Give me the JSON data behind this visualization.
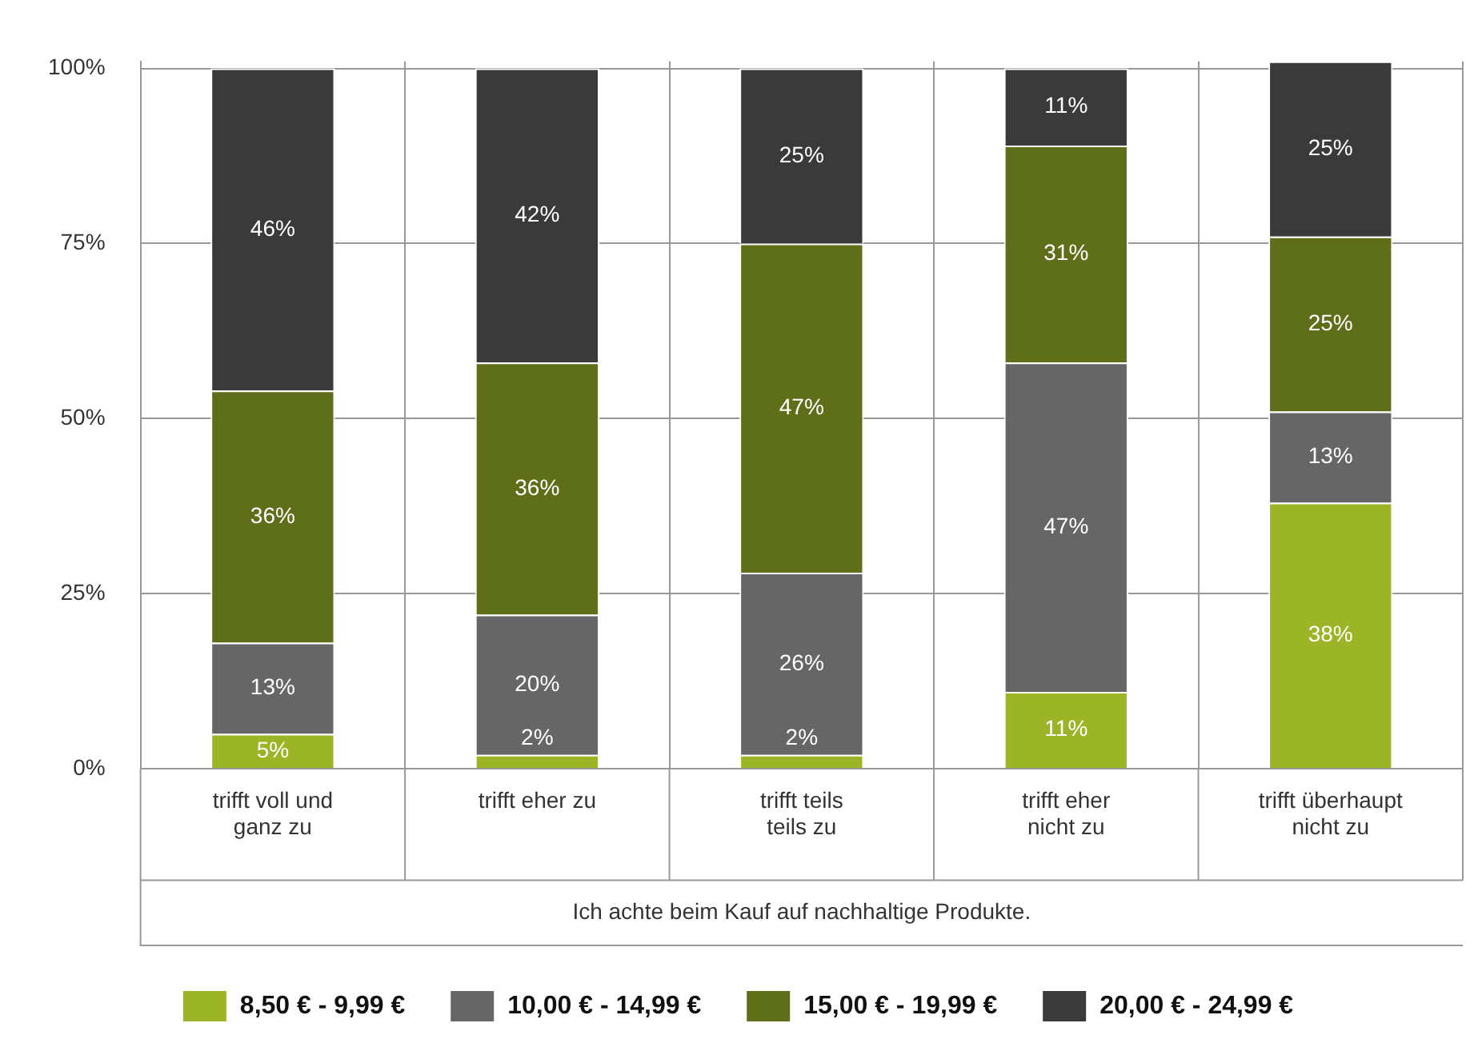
{
  "chart_data": {
    "type": "bar",
    "stacked": true,
    "xlabel": "Ich achte beim Kauf auf nachhaltige Produkte.",
    "categories": [
      "trifft voll und ganz zu",
      "trifft eher zu",
      "trifft teils teils zu",
      "trifft eher nicht zu",
      "trifft überhaupt nicht zu"
    ],
    "series": [
      {
        "name": "8,50 € - 9,99 €",
        "color": "#9bb526",
        "values": [
          5,
          2,
          2,
          11,
          38
        ],
        "value_labels": [
          "5%",
          "2%",
          "2%",
          "11%",
          "38%"
        ]
      },
      {
        "name": "10,00 € - 14,99 €",
        "color": "#666666",
        "values": [
          13,
          20,
          26,
          47,
          13
        ],
        "value_labels": [
          "13%",
          "20%",
          "26%",
          "47%",
          "13%"
        ]
      },
      {
        "name": "15,00 € - 19,99 €",
        "color": "#5e6e19",
        "values": [
          36,
          36,
          47,
          31,
          25
        ],
        "value_labels": [
          "36%",
          "36%",
          "47%",
          "31%",
          "25%"
        ]
      },
      {
        "name": "20,00 € - 24,99 €",
        "color": "#3a3a3a",
        "values": [
          46,
          42,
          25,
          11,
          25
        ],
        "value_labels": [
          "46%",
          "42%",
          "25%",
          "11%",
          "25%"
        ]
      }
    ],
    "ylim": [
      0,
      101
    ],
    "yticks": [
      {
        "value": 0,
        "label": "0%"
      },
      {
        "value": 25,
        "label": "25%"
      },
      {
        "value": 50,
        "label": "50%"
      },
      {
        "value": 75,
        "label": "75%"
      },
      {
        "value": 100,
        "label": "100%"
      }
    ],
    "grid": true,
    "legend": "bottom"
  }
}
